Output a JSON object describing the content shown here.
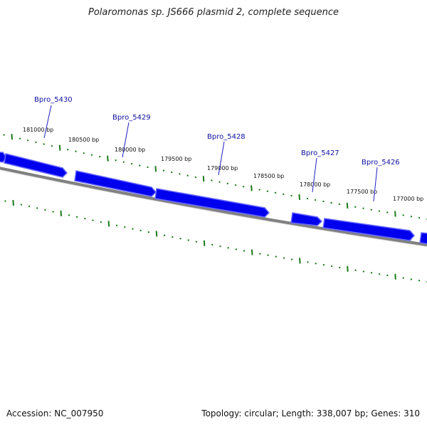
{
  "title": "Polaromonas sp. JS666 plasmid 2, complete sequence",
  "footer": {
    "accession": "Accession: NC_007950",
    "summary": "Topology: circular; Length: 338,007 bp; Genes: 310"
  },
  "colors": {
    "gene_fill": "#0000ee",
    "gene_edge": "#6a6aff",
    "backbone": "#808080",
    "tick": "#1a7a1a",
    "leader": "#2020c0"
  },
  "ruler": {
    "labels": [
      "181000 bp",
      "180500 bp",
      "180000 bp",
      "179500 bp",
      "179000 bp",
      "178500 bp",
      "178000 bp",
      "177500 bp",
      "177000 bp"
    ]
  },
  "genes": [
    {
      "label": "Bpro_5430"
    },
    {
      "label": "Bpro_5429"
    },
    {
      "label": "Bpro_5428"
    },
    {
      "label": "Bpro_5427"
    },
    {
      "label": "Bpro_5426"
    }
  ]
}
